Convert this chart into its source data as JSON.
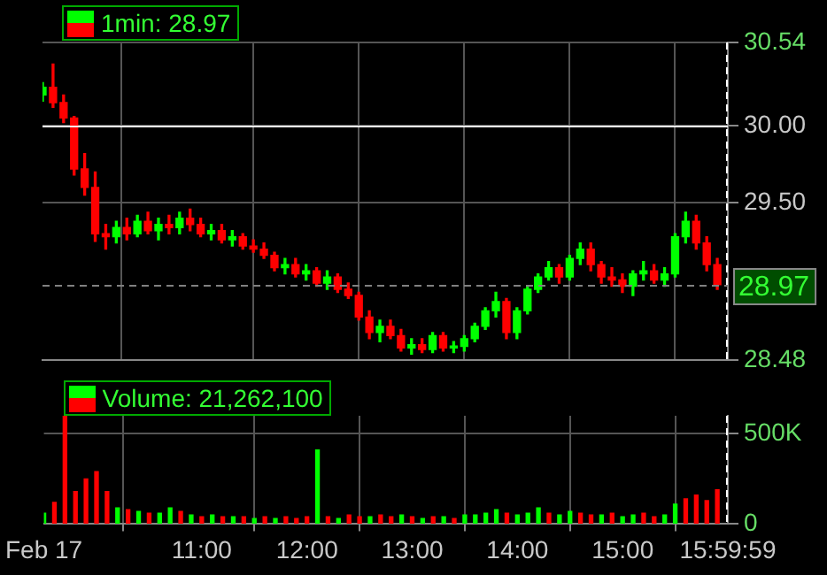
{
  "chart_data": [
    {
      "type": "candlestick",
      "legend": "top left",
      "grid": true,
      "tick_labels": "y",
      "x": [
        9.5,
        9.6,
        9.7,
        9.8,
        9.9,
        10,
        10.1,
        10.2,
        10.3,
        10.4,
        10.5,
        10.6,
        10.7,
        10.8,
        10.9,
        11,
        11.1,
        11.2,
        11.3,
        11.4,
        11.5,
        11.6,
        11.7,
        11.8,
        11.9,
        12,
        12.1,
        12.2,
        12.3,
        12.4,
        12.5,
        12.6,
        12.7,
        12.8,
        12.9,
        13,
        13.1,
        13.2,
        13.3,
        13.4,
        13.5,
        13.6,
        13.7,
        13.8,
        13.9,
        14,
        14.1,
        14.2,
        14.3,
        14.4,
        14.5,
        14.6,
        14.7,
        14.8,
        14.9,
        15,
        15.1,
        15.2,
        15.3,
        15.4,
        15.5,
        15.6,
        15.7,
        15.8,
        15.9
      ],
      "series": [
        {
          "name": "1min: 28.97",
          "ohlc": [
            [
              30.2,
              30.28,
              30.16,
              30.25
            ],
            [
              30.25,
              30.4,
              30.12,
              30.15
            ],
            [
              30.15,
              30.2,
              30.02,
              30.05
            ],
            [
              30.05,
              30.06,
              29.68,
              29.72
            ],
            [
              29.72,
              29.82,
              29.55,
              29.6
            ],
            [
              29.6,
              29.7,
              29.25,
              29.3
            ],
            [
              29.3,
              29.36,
              29.2,
              29.28
            ],
            [
              29.28,
              29.38,
              29.24,
              29.34
            ],
            [
              29.34,
              29.4,
              29.26,
              29.3
            ],
            [
              29.3,
              29.42,
              29.28,
              29.38
            ],
            [
              29.38,
              29.44,
              29.3,
              29.32
            ],
            [
              29.32,
              29.4,
              29.26,
              29.36
            ],
            [
              29.36,
              29.42,
              29.3,
              29.34
            ],
            [
              29.34,
              29.44,
              29.3,
              29.4
            ],
            [
              29.4,
              29.46,
              29.32,
              29.36
            ],
            [
              29.36,
              29.4,
              29.28,
              29.3
            ],
            [
              29.3,
              29.36,
              29.26,
              29.32
            ],
            [
              29.32,
              29.36,
              29.24,
              29.26
            ],
            [
              29.26,
              29.32,
              29.22,
              29.28
            ],
            [
              29.28,
              29.3,
              29.2,
              29.22
            ],
            [
              29.22,
              29.26,
              29.18,
              29.2
            ],
            [
              29.2,
              29.24,
              29.14,
              29.16
            ],
            [
              29.16,
              29.18,
              29.06,
              29.08
            ],
            [
              29.08,
              29.14,
              29.04,
              29.1
            ],
            [
              29.1,
              29.14,
              29.02,
              29.04
            ],
            [
              29.04,
              29.1,
              29.0,
              29.06
            ],
            [
              29.06,
              29.08,
              28.96,
              28.98
            ],
            [
              28.98,
              29.06,
              28.94,
              29.02
            ],
            [
              29.02,
              29.04,
              28.92,
              28.94
            ],
            [
              28.94,
              28.98,
              28.88,
              28.9
            ],
            [
              28.9,
              28.92,
              28.74,
              28.76
            ],
            [
              28.76,
              28.8,
              28.62,
              28.66
            ],
            [
              28.66,
              28.74,
              28.6,
              28.7
            ],
            [
              28.7,
              28.74,
              28.62,
              28.64
            ],
            [
              28.64,
              28.68,
              28.54,
              28.56
            ],
            [
              28.56,
              28.62,
              28.52,
              28.58
            ],
            [
              28.58,
              28.62,
              28.53,
              28.55
            ],
            [
              28.55,
              28.66,
              28.53,
              28.64
            ],
            [
              28.64,
              28.66,
              28.54,
              28.56
            ],
            [
              28.56,
              28.6,
              28.53,
              28.57
            ],
            [
              28.57,
              28.64,
              28.54,
              28.62
            ],
            [
              28.62,
              28.72,
              28.6,
              28.7
            ],
            [
              28.7,
              28.82,
              28.68,
              28.8
            ],
            [
              28.8,
              28.92,
              28.76,
              28.86
            ],
            [
              28.86,
              28.88,
              28.62,
              28.66
            ],
            [
              28.66,
              28.82,
              28.62,
              28.8
            ],
            [
              28.8,
              28.96,
              28.78,
              28.94
            ],
            [
              28.94,
              29.04,
              28.92,
              29.02
            ],
            [
              29.02,
              29.12,
              29.0,
              29.08
            ],
            [
              29.08,
              29.1,
              28.98,
              29.02
            ],
            [
              29.02,
              29.16,
              29.0,
              29.14
            ],
            [
              29.14,
              29.24,
              29.1,
              29.2
            ],
            [
              29.2,
              29.24,
              29.06,
              29.1
            ],
            [
              29.1,
              29.12,
              28.98,
              29.02
            ],
            [
              29.02,
              29.08,
              28.96,
              29.0
            ],
            [
              29.0,
              29.04,
              28.92,
              28.96
            ],
            [
              28.96,
              29.06,
              28.9,
              29.04
            ],
            [
              29.04,
              29.12,
              29.0,
              29.06
            ],
            [
              29.06,
              29.1,
              28.98,
              29.0
            ],
            [
              29.0,
              29.08,
              28.96,
              29.04
            ],
            [
              29.04,
              29.3,
              29.02,
              29.28
            ],
            [
              29.28,
              29.44,
              29.24,
              29.38
            ],
            [
              29.38,
              29.42,
              29.2,
              29.24
            ],
            [
              29.24,
              29.28,
              29.06,
              29.1
            ],
            [
              29.1,
              29.14,
              28.94,
              28.97
            ]
          ],
          "colors": [
            "#00ff00",
            "#ff0000",
            "#ff0000",
            "#ff0000",
            "#ff0000",
            "#ff0000",
            "#ff0000",
            "#00ff00",
            "#ff0000",
            "#00ff00",
            "#ff0000",
            "#00ff00",
            "#ff0000",
            "#00ff00",
            "#ff0000",
            "#ff0000",
            "#00ff00",
            "#ff0000",
            "#00ff00",
            "#ff0000",
            "#ff0000",
            "#ff0000",
            "#ff0000",
            "#00ff00",
            "#ff0000",
            "#00ff00",
            "#ff0000",
            "#00ff00",
            "#ff0000",
            "#ff0000",
            "#ff0000",
            "#ff0000",
            "#00ff00",
            "#ff0000",
            "#ff0000",
            "#00ff00",
            "#ff0000",
            "#00ff00",
            "#ff0000",
            "#00ff00",
            "#00ff00",
            "#00ff00",
            "#00ff00",
            "#00ff00",
            "#ff0000",
            "#00ff00",
            "#00ff00",
            "#00ff00",
            "#00ff00",
            "#ff0000",
            "#00ff00",
            "#00ff00",
            "#ff0000",
            "#ff0000",
            "#ff0000",
            "#ff0000",
            "#00ff00",
            "#00ff00",
            "#ff0000",
            "#00ff00",
            "#00ff00",
            "#00ff00",
            "#ff0000",
            "#ff0000",
            "#ff0000"
          ]
        }
      ],
      "xlim": [
        9.5,
        16
      ],
      "xticks": [
        {
          "value": 9.5,
          "label": null
        },
        {
          "value": 11,
          "label": null
        },
        {
          "value": 12,
          "label": null
        },
        {
          "value": 13,
          "label": null
        },
        {
          "value": 14,
          "label": null
        },
        {
          "value": 15,
          "label": null
        },
        {
          "value": 15.9997,
          "label": null
        }
      ],
      "ylim": [
        28.48,
        30.54
      ],
      "yticks": [
        28.48,
        {
          "value": 29.5,
          "label": "29.50"
        },
        {
          "value": 30,
          "label": "30.00"
        },
        30.54
      ],
      "ref_lines": [
        {
          "axis": "y",
          "value": 30,
          "color": "#ffffff",
          "line_style": "solid"
        },
        {
          "axis": "y",
          "value": 28.97,
          "label": "28.97",
          "color": "#808080",
          "line_style": "dashed"
        },
        {
          "axis": "x",
          "value": 16,
          "color": "#ffffff",
          "line_style": "dashed"
        }
      ]
    },
    {
      "type": "bar",
      "legend": "top left",
      "grid": true,
      "x": [
        9.5,
        9.6,
        9.7,
        9.8,
        9.9,
        10,
        10.1,
        10.2,
        10.3,
        10.4,
        10.5,
        10.6,
        10.7,
        10.8,
        10.9,
        11,
        11.1,
        11.2,
        11.3,
        11.4,
        11.5,
        11.6,
        11.7,
        11.8,
        11.9,
        12,
        12.1,
        12.2,
        12.3,
        12.4,
        12.5,
        12.6,
        12.7,
        12.8,
        12.9,
        13,
        13.1,
        13.2,
        13.3,
        13.4,
        13.5,
        13.6,
        13.7,
        13.8,
        13.9,
        14,
        14.1,
        14.2,
        14.3,
        14.4,
        14.5,
        14.6,
        14.7,
        14.8,
        14.9,
        15,
        15.1,
        15.2,
        15.3,
        15.4,
        15.5,
        15.6,
        15.7,
        15.8,
        15.9
      ],
      "series": [
        {
          "name": "Volume: 21,262,100",
          "values": [
            60000,
            120000,
            600000,
            180000,
            250000,
            290000,
            180000,
            90000,
            80000,
            70000,
            60000,
            60000,
            90000,
            70000,
            50000,
            40000,
            50000,
            40000,
            40000,
            40000,
            30000,
            40000,
            30000,
            40000,
            30000,
            40000,
            410000,
            40000,
            30000,
            50000,
            40000,
            40000,
            50000,
            40000,
            50000,
            40000,
            30000,
            40000,
            40000,
            30000,
            50000,
            50000,
            60000,
            80000,
            60000,
            50000,
            60000,
            90000,
            60000,
            50000,
            70000,
            60000,
            50000,
            50000,
            60000,
            40000,
            50000,
            60000,
            40000,
            50000,
            110000,
            140000,
            160000,
            130000,
            190000
          ],
          "colors": [
            "#00ff00",
            "#ff0000",
            "#ff0000",
            "#ff0000",
            "#ff0000",
            "#ff0000",
            "#ff0000",
            "#00ff00",
            "#ff0000",
            "#00ff00",
            "#ff0000",
            "#00ff00",
            "#00ff00",
            "#ff0000",
            "#00ff00",
            "#ff0000",
            "#00ff00",
            "#ff0000",
            "#00ff00",
            "#ff0000",
            "#00ff00",
            "#ff0000",
            "#00ff00",
            "#ff0000",
            "#ff0000",
            "#ff0000",
            "#00ff00",
            "#ff0000",
            "#00ff00",
            "#ff0000",
            "#ff0000",
            "#00ff00",
            "#ff0000",
            "#ff0000",
            "#00ff00",
            "#ff0000",
            "#00ff00",
            "#ff0000",
            "#00ff00",
            "#ff0000",
            "#00ff00",
            "#00ff00",
            "#00ff00",
            "#00ff00",
            "#ff0000",
            "#00ff00",
            "#00ff00",
            "#00ff00",
            "#ff0000",
            "#00ff00",
            "#00ff00",
            "#ff0000",
            "#ff0000",
            "#00ff00",
            "#ff0000",
            "#00ff00",
            "#00ff00",
            "#ff0000",
            "#ff0000",
            "#00ff00",
            "#00ff00",
            "#ff0000",
            "#ff0000",
            "#ff0000",
            "#ff0000"
          ]
        }
      ],
      "xlim": [
        9.5,
        16
      ],
      "xticks": [
        {
          "value": 9.5,
          "label": "Feb 17"
        },
        {
          "value": 11,
          "label": "11:00"
        },
        {
          "value": 12,
          "label": "12:00"
        },
        {
          "value": 13,
          "label": "13:00"
        },
        {
          "value": 14,
          "label": "14:00"
        },
        {
          "value": 15,
          "label": "15:00"
        },
        {
          "value": 15.9997,
          "label": "15:59:59"
        }
      ],
      "ylim": [
        0,
        600000
      ],
      "yticks": [
        0,
        {
          "value": 500000,
          "label": "500K"
        }
      ],
      "ref_lines": [
        {
          "axis": "x",
          "value": 16,
          "color": "#ffffff",
          "line_style": "dashed"
        }
      ]
    }
  ]
}
